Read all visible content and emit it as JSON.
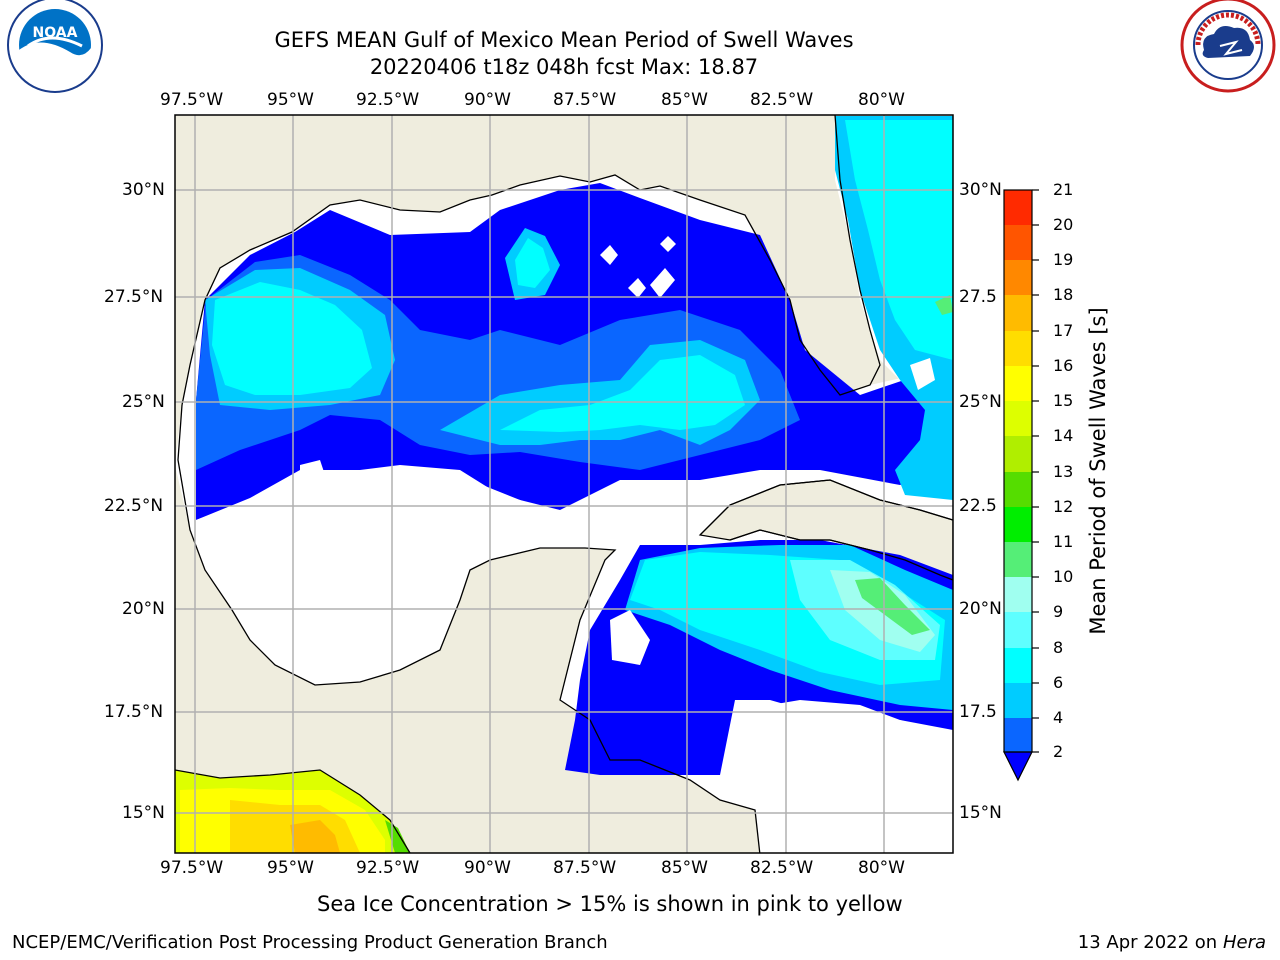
{
  "header": {
    "title_line1": "GEFS MEAN Gulf of Mexico Mean Period of Swell Waves",
    "title_line2": "20220406 t18z 048h fcst   Max: 18.87"
  },
  "logos": {
    "left": {
      "icon": "noaa-logo",
      "text": "NOAA",
      "ring_text": "NATIONAL OCEANIC AND ATMOSPHERIC ADMINISTRATION · U.S. DEPARTMENT OF COMMERCE"
    },
    "right": {
      "icon": "nws-logo",
      "ring_text": "NATIONAL WEATHER SERVICE"
    }
  },
  "map": {
    "lon_ticks": [
      "97.5°W",
      "95°W",
      "92.5°W",
      "90°W",
      "87.5°W",
      "85°W",
      "82.5°W",
      "80°W"
    ],
    "lat_ticks_left": [
      "30°N",
      "27.5°N",
      "25°N",
      "22.5°N",
      "20°N",
      "17.5°N",
      "15°N"
    ],
    "lat_ticks_right": [
      "30°N",
      "27.5",
      "25°N",
      "22.5",
      "20°N",
      "17.5",
      "15°N"
    ],
    "colors": {
      "land": "#efedde",
      "ocean": "#ffffff",
      "grid": "#b0b0b0"
    }
  },
  "colorbar": {
    "label": "Mean Period of Swell Waves [s]",
    "ticks": [
      "2",
      "4",
      "6",
      "8",
      "9",
      "10",
      "11",
      "12",
      "13",
      "14",
      "15",
      "16",
      "17",
      "18",
      "19",
      "20",
      "21"
    ],
    "colors": [
      "#0a66ff",
      "#00ccff",
      "#00ffff",
      "#5effff",
      "#a0fff0",
      "#55ee77",
      "#00ee00",
      "#55dd00",
      "#b0ee00",
      "#ddff00",
      "#ffff00",
      "#ffdd00",
      "#ffbb00",
      "#ff8800",
      "#ff5500",
      "#ff2a00",
      "#ff0000"
    ],
    "extend_color": "#0000ff"
  },
  "notes": {
    "sea_ice": "Sea Ice Concentration > 15% is shown in pink to yellow"
  },
  "footer": {
    "left": "NCEP/EMC/Verification Post Processing Product Generation Branch",
    "date": "13 Apr 2022 on",
    "machine": "Hera"
  }
}
